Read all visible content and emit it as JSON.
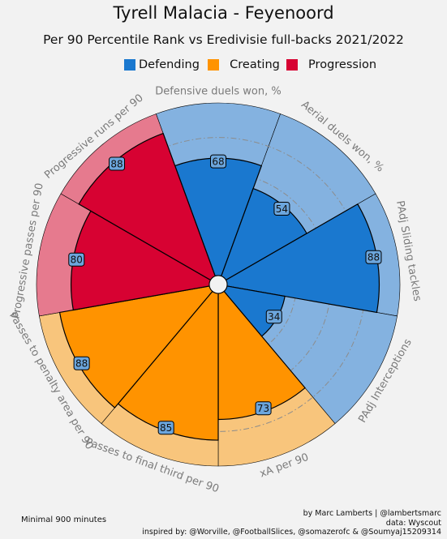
{
  "header": {
    "title": "Tyrell Malacia - Feyenoord",
    "subtitle": "Per 90 Percentile Rank vs Eredivisie full-backs 2021/2022"
  },
  "legend": [
    {
      "label": "Defending",
      "color": "#1a78cf"
    },
    {
      "label": "  Creating",
      "color": "#ff9300"
    },
    {
      "label": "  Progression",
      "color": "#d70232"
    }
  ],
  "footer": {
    "left": "Minimal 900 minutes",
    "right_line1": "by Marc Lamberts | @lambertsmarc",
    "right_line2": "data: Wyscout",
    "right_line3": "inspired by: @Worville, @FootballSlices, @somazerofc & @Soumyaj15209314"
  },
  "chart_data": {
    "type": "radar",
    "title": "Tyrell Malacia - Feyenoord",
    "subtitle": "Per 90 Percentile Rank vs Eredivisie full-backs 2021/2022",
    "range": [
      0,
      100
    ],
    "categories": [
      "Defensive duels won, %",
      "Aerial duels won, %",
      "PAdj Sliding tackles",
      "PAdj Interceptions",
      "xA per 90",
      "Passes to final third per 90",
      "Passes to penalty area per 90",
      "Progressive passes per 90",
      "Progressive runs per 90"
    ],
    "values": [
      68,
      54,
      88,
      34,
      73,
      85,
      88,
      80,
      88
    ],
    "groups": [
      "Defending",
      "Defending",
      "Defending",
      "Defending",
      "Creating",
      "Creating",
      "Creating",
      "Progression",
      "Progression"
    ],
    "colors": {
      "Defending": {
        "slice": "#1a78cf",
        "background": "#84b2e0"
      },
      "Creating": {
        "slice": "#ff9300",
        "background": "#f8c57c"
      },
      "Progression": {
        "slice": "#d70232",
        "background": "#e67a8e"
      }
    },
    "value_box_color": "#6ca6dd",
    "label_color": "#7a7a7a"
  }
}
